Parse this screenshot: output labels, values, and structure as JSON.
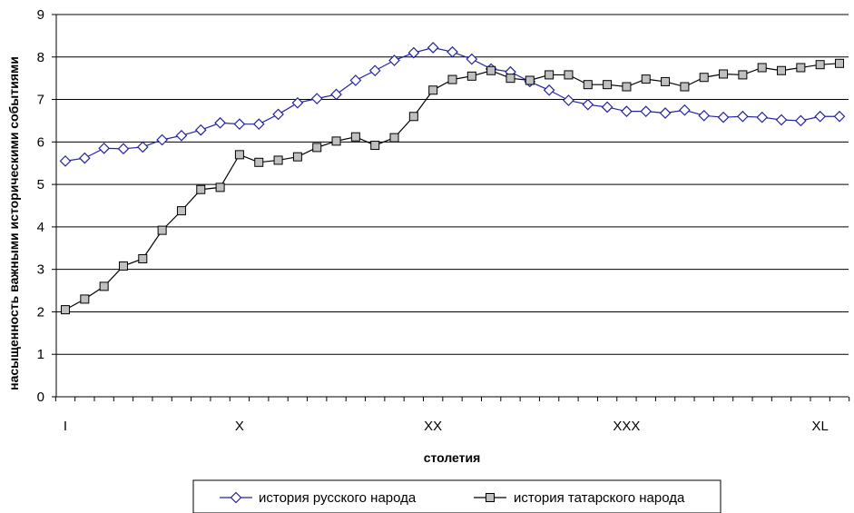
{
  "chart_data": {
    "type": "line",
    "xlabel": "столетия",
    "ylabel": "насыщенность важными историческими событиями",
    "ylim": [
      0,
      9
    ],
    "y_ticks": [
      0,
      1,
      2,
      3,
      4,
      5,
      6,
      7,
      8,
      9
    ],
    "x_range": [
      1,
      41
    ],
    "x_tick_labels": [
      {
        "x": 1,
        "label": "I"
      },
      {
        "x": 10,
        "label": "X"
      },
      {
        "x": 20,
        "label": "XX"
      },
      {
        "x": 30,
        "label": "XXX"
      },
      {
        "x": 40,
        "label": "XL"
      }
    ],
    "grid": "horizontal",
    "legend": "bottom",
    "series": [
      {
        "name": "история русского народа",
        "marker": "diamond",
        "marker_fill": "#ffffff",
        "color": "#2323a0",
        "x": [
          1,
          2,
          3,
          4,
          5,
          6,
          7,
          8,
          9,
          10,
          11,
          12,
          13,
          14,
          15,
          16,
          17,
          18,
          19,
          20,
          21,
          22,
          23,
          24,
          25,
          26,
          27,
          28,
          29,
          30,
          31,
          32,
          33,
          34,
          35,
          36,
          37,
          38,
          39,
          40,
          41
        ],
        "values": [
          5.55,
          5.62,
          5.85,
          5.84,
          5.88,
          6.05,
          6.15,
          6.28,
          6.45,
          6.42,
          6.42,
          6.65,
          6.92,
          7.02,
          7.12,
          7.45,
          7.68,
          7.92,
          8.1,
          8.22,
          8.12,
          7.95,
          7.72,
          7.65,
          7.42,
          7.22,
          6.98,
          6.88,
          6.82,
          6.72,
          6.72,
          6.68,
          6.75,
          6.62,
          6.58,
          6.6,
          6.58,
          6.52,
          6.5,
          6.6,
          6.6
        ]
      },
      {
        "name": "история татарского народа",
        "marker": "square",
        "marker_fill": "#c0c0c0",
        "color": "#000000",
        "x": [
          1,
          2,
          3,
          4,
          5,
          6,
          7,
          8,
          9,
          10,
          11,
          12,
          13,
          14,
          15,
          16,
          17,
          18,
          19,
          20,
          21,
          22,
          23,
          24,
          25,
          26,
          27,
          28,
          29,
          30,
          31,
          32,
          33,
          34,
          35,
          36,
          37,
          38,
          39,
          40,
          41
        ],
        "values": [
          2.05,
          2.3,
          2.6,
          3.08,
          3.25,
          3.92,
          4.38,
          4.88,
          4.93,
          5.7,
          5.52,
          5.57,
          5.65,
          5.87,
          6.02,
          6.12,
          5.92,
          6.1,
          6.6,
          7.22,
          7.47,
          7.55,
          7.68,
          7.5,
          7.45,
          7.58,
          7.58,
          7.35,
          7.35,
          7.3,
          7.48,
          7.42,
          7.3,
          7.52,
          7.6,
          7.58,
          7.75,
          7.68,
          7.75,
          7.82,
          7.85
        ]
      }
    ]
  }
}
